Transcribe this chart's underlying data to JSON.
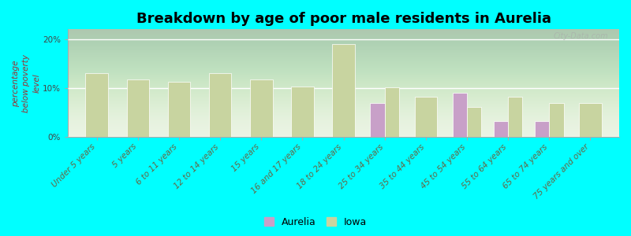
{
  "title": "Breakdown by age of poor male residents in Aurelia",
  "categories": [
    "Under 5 years",
    "5 years",
    "6 to 11 years",
    "12 to 14 years",
    "15 years",
    "16 and 17 years",
    "18 to 24 years",
    "25 to 34 years",
    "35 to 44 years",
    "45 to 54 years",
    "55 to 64 years",
    "65 to 74 years",
    "75 years and over"
  ],
  "iowa_values": [
    13.0,
    11.8,
    11.3,
    13.0,
    11.8,
    10.3,
    19.0,
    10.2,
    8.2,
    6.2,
    8.2,
    7.0,
    7.0
  ],
  "aurelia_values": [
    0,
    0,
    0,
    0,
    0,
    0,
    0,
    7.0,
    0,
    9.0,
    3.2,
    3.2,
    0
  ],
  "iowa_color": "#c8d4a0",
  "aurelia_color": "#c8a0c8",
  "background_color": "#00ffff",
  "ylabel": "percentage\nbelow poverty\nlevel",
  "ylim": [
    0,
    22
  ],
  "yticks": [
    0,
    10,
    20
  ],
  "title_fontsize": 13,
  "axis_label_fontsize": 7.5,
  "tick_fontsize": 7.5,
  "watermark": "City-Data.com",
  "single_bar_width": 0.55,
  "grouped_bar_width": 0.35
}
